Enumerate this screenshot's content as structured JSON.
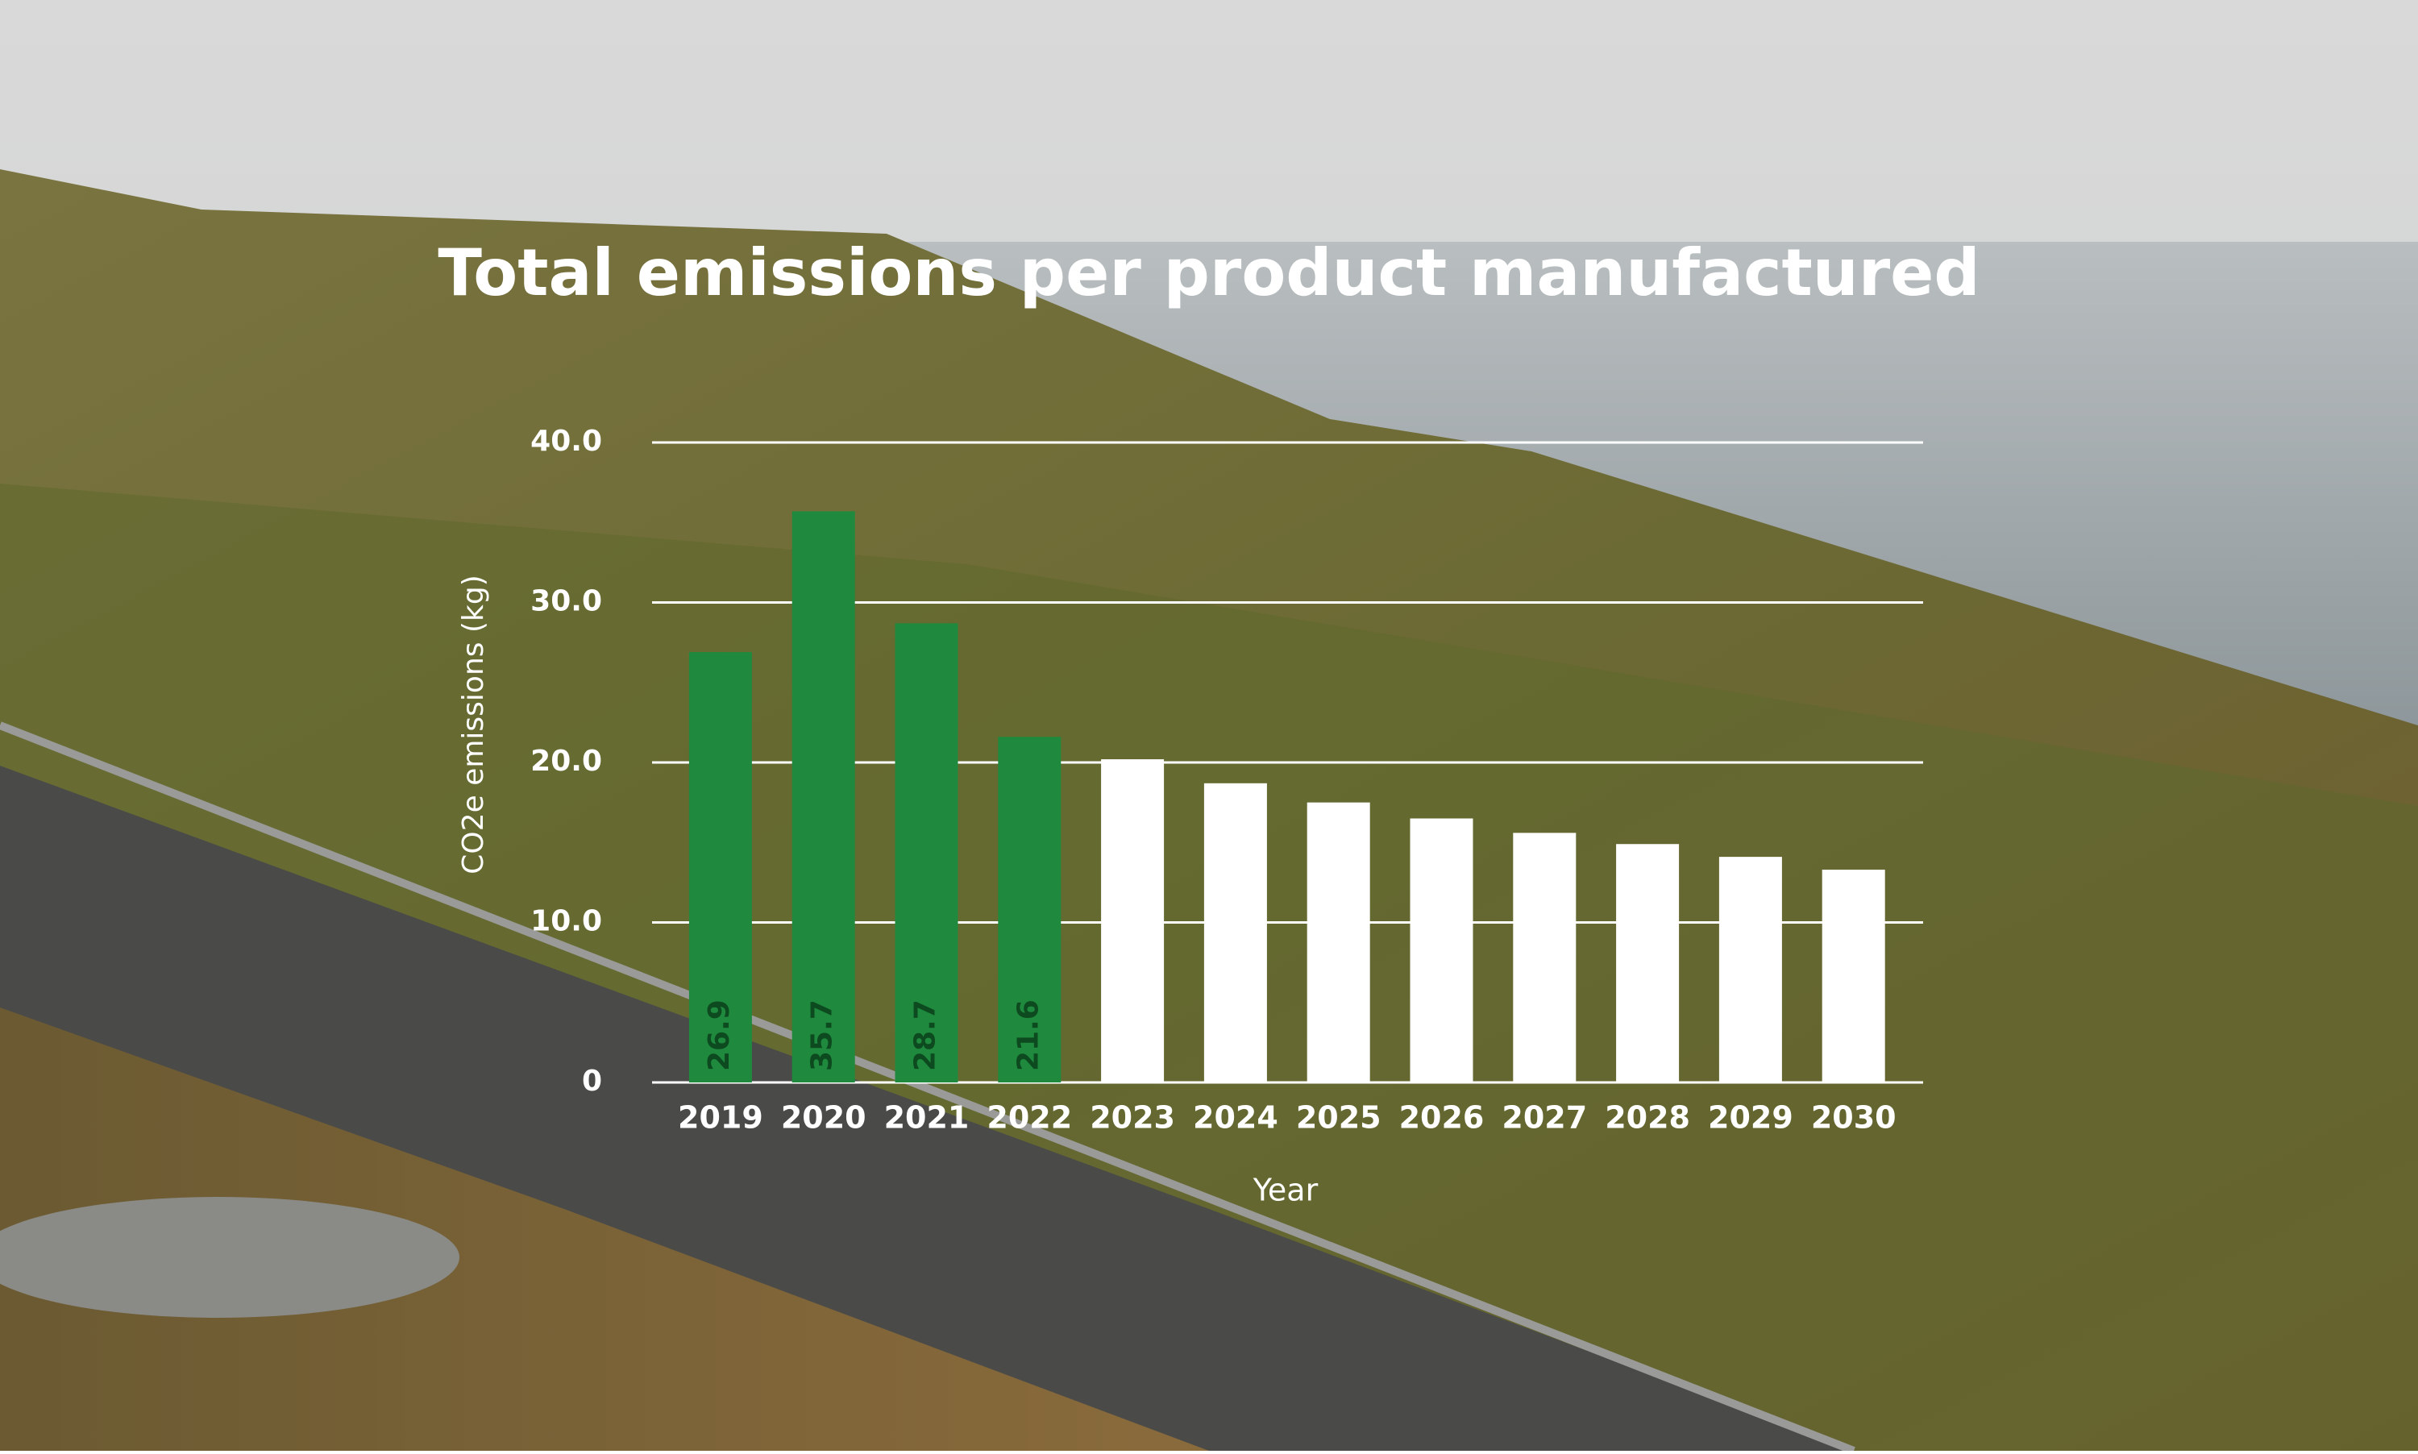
{
  "chart_data": {
    "type": "bar",
    "title": "Total emissions per product manufactured",
    "x_label": "Year",
    "y_label": "CO2e emissions (kg)",
    "categories": [
      "2019",
      "2020",
      "2021",
      "2022",
      "2023",
      "2024",
      "2025",
      "2026",
      "2027",
      "2028",
      "2029",
      "2030"
    ],
    "series": [
      {
        "color": "#1f8a3e",
        "data_labels": true,
        "label_color": "#0d4a1f",
        "values": [
          26.9,
          35.7,
          28.7,
          21.6,
          null,
          null,
          null,
          null,
          null,
          null,
          null,
          null
        ]
      },
      {
        "color": "#ffffff",
        "data_labels": false,
        "values": [
          null,
          null,
          null,
          null,
          20.2,
          18.7,
          17.5,
          16.5,
          15.6,
          14.9,
          14.1,
          13.3
        ]
      }
    ],
    "ylim": [
      0,
      40
    ],
    "yticks": [
      0,
      {
        "value": 10,
        "label": "10.0"
      },
      {
        "value": 20,
        "label": "20.0"
      },
      {
        "value": 30,
        "label": "30.0"
      },
      {
        "value": 40,
        "label": "40.0"
      }
    ],
    "grid": true
  }
}
